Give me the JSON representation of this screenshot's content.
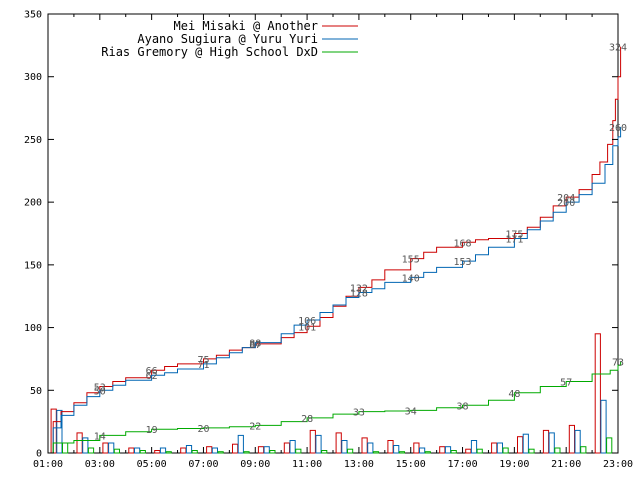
{
  "chart_data": {
    "type": "line",
    "title": "",
    "xlabel": "",
    "ylabel": "",
    "xlim": [
      1,
      23
    ],
    "ylim": [
      0,
      350
    ],
    "x_ticks": [
      "01:00",
      "03:00",
      "05:00",
      "07:00",
      "09:00",
      "11:00",
      "13:00",
      "15:00",
      "17:00",
      "19:00",
      "21:00",
      "23:00"
    ],
    "y_ticks": [
      0,
      50,
      100,
      150,
      200,
      250,
      300,
      350
    ],
    "grid": false,
    "legend_position": "top",
    "series": [
      {
        "name": "Mei Misaki @ Another",
        "color": "#cc0000",
        "cumulative": [
          [
            1,
            0
          ],
          [
            1.2,
            25
          ],
          [
            1.5,
            33
          ],
          [
            2,
            40
          ],
          [
            2.5,
            48
          ],
          [
            3,
            53
          ],
          [
            3.5,
            57
          ],
          [
            4,
            60
          ],
          [
            5,
            66
          ],
          [
            5.5,
            69
          ],
          [
            6,
            71
          ],
          [
            7,
            75
          ],
          [
            7.5,
            78
          ],
          [
            8,
            82
          ],
          [
            8.5,
            84
          ],
          [
            9,
            87
          ],
          [
            10,
            92
          ],
          [
            10.5,
            96
          ],
          [
            11,
            101
          ],
          [
            11.5,
            108
          ],
          [
            12,
            117
          ],
          [
            12.5,
            125
          ],
          [
            13,
            132
          ],
          [
            13.5,
            138
          ],
          [
            14,
            146
          ],
          [
            15,
            155
          ],
          [
            15.5,
            160
          ],
          [
            16,
            164
          ],
          [
            17,
            168
          ],
          [
            17.5,
            170
          ],
          [
            18,
            171
          ],
          [
            19,
            175
          ],
          [
            19.5,
            180
          ],
          [
            20,
            188
          ],
          [
            20.5,
            197
          ],
          [
            21,
            204
          ],
          [
            21.5,
            210
          ],
          [
            22,
            222
          ],
          [
            22.3,
            232
          ],
          [
            22.6,
            246
          ],
          [
            22.8,
            265
          ],
          [
            22.9,
            282
          ],
          [
            23,
            300
          ],
          [
            23.1,
            324
          ]
        ],
        "labels": [
          {
            "x": 3,
            "y": 53,
            "text": "53"
          },
          {
            "x": 5,
            "y": 66,
            "text": "66"
          },
          {
            "x": 7,
            "y": 75,
            "text": "75"
          },
          {
            "x": 9,
            "y": 87,
            "text": "87"
          },
          {
            "x": 11,
            "y": 101,
            "text": "101"
          },
          {
            "x": 13,
            "y": 132,
            "text": "132"
          },
          {
            "x": 15,
            "y": 155,
            "text": "155"
          },
          {
            "x": 17,
            "y": 168,
            "text": "168"
          },
          {
            "x": 19,
            "y": 175,
            "text": "175"
          },
          {
            "x": 21,
            "y": 204,
            "text": "204"
          },
          {
            "x": 23,
            "y": 324,
            "text": "324"
          }
        ],
        "hourly": [
          35,
          16,
          8,
          4,
          2,
          4,
          5,
          7,
          5,
          8,
          18,
          16,
          12,
          10,
          8,
          5,
          3,
          8,
          13,
          18,
          22,
          95
        ]
      },
      {
        "name": "Ayano Sugiura @ Yuru Yuri",
        "color": "#0066b3",
        "cumulative": [
          [
            1,
            0
          ],
          [
            1.2,
            20
          ],
          [
            1.5,
            30
          ],
          [
            2,
            38
          ],
          [
            2.5,
            45
          ],
          [
            3,
            50
          ],
          [
            3.5,
            54
          ],
          [
            4,
            58
          ],
          [
            5,
            62
          ],
          [
            5.5,
            64
          ],
          [
            6,
            67
          ],
          [
            7,
            71
          ],
          [
            7.5,
            76
          ],
          [
            8,
            80
          ],
          [
            8.5,
            84
          ],
          [
            9,
            88
          ],
          [
            10,
            95
          ],
          [
            10.5,
            102
          ],
          [
            11,
            106
          ],
          [
            11.5,
            112
          ],
          [
            12,
            118
          ],
          [
            12.5,
            124
          ],
          [
            13,
            128
          ],
          [
            13.5,
            131
          ],
          [
            14,
            136
          ],
          [
            15,
            140
          ],
          [
            15.5,
            144
          ],
          [
            16,
            148
          ],
          [
            17,
            153
          ],
          [
            17.5,
            158
          ],
          [
            18,
            164
          ],
          [
            19,
            171
          ],
          [
            19.5,
            178
          ],
          [
            20,
            185
          ],
          [
            20.5,
            192
          ],
          [
            21,
            200
          ],
          [
            21.5,
            206
          ],
          [
            22,
            215
          ],
          [
            22.5,
            230
          ],
          [
            22.8,
            245
          ],
          [
            23,
            252
          ],
          [
            23.1,
            260
          ]
        ],
        "labels": [
          {
            "x": 3,
            "y": 50,
            "text": "50"
          },
          {
            "x": 5,
            "y": 62,
            "text": "62"
          },
          {
            "x": 7,
            "y": 71,
            "text": "71"
          },
          {
            "x": 9,
            "y": 88,
            "text": "88"
          },
          {
            "x": 11,
            "y": 106,
            "text": "106"
          },
          {
            "x": 13,
            "y": 128,
            "text": "128"
          },
          {
            "x": 15,
            "y": 140,
            "text": "140"
          },
          {
            "x": 17,
            "y": 153,
            "text": "153"
          },
          {
            "x": 19,
            "y": 171,
            "text": "171"
          },
          {
            "x": 21,
            "y": 200,
            "text": "200"
          },
          {
            "x": 23,
            "y": 260,
            "text": "260"
          }
        ],
        "hourly": [
          34,
          12,
          8,
          4,
          4,
          6,
          4,
          14,
          5,
          10,
          14,
          10,
          8,
          6,
          4,
          5,
          10,
          8,
          15,
          16,
          18,
          42
        ]
      },
      {
        "name": "Rias Gremory @ High School DxD",
        "color": "#00aa00",
        "cumulative": [
          [
            1,
            0
          ],
          [
            1.2,
            8
          ],
          [
            2,
            10
          ],
          [
            3,
            14
          ],
          [
            4,
            17
          ],
          [
            5,
            19
          ],
          [
            6,
            19.5
          ],
          [
            7,
            20
          ],
          [
            8,
            21
          ],
          [
            9,
            22
          ],
          [
            10,
            25
          ],
          [
            11,
            28
          ],
          [
            12,
            31
          ],
          [
            13,
            33
          ],
          [
            14,
            33.5
          ],
          [
            15,
            34
          ],
          [
            16,
            36
          ],
          [
            17,
            38
          ],
          [
            18,
            42
          ],
          [
            19,
            48
          ],
          [
            20,
            53
          ],
          [
            21,
            57
          ],
          [
            22,
            63
          ],
          [
            22.7,
            66
          ],
          [
            23,
            70
          ],
          [
            23.1,
            73
          ]
        ],
        "labels": [
          {
            "x": 3,
            "y": 14,
            "text": "14"
          },
          {
            "x": 5,
            "y": 19,
            "text": "19"
          },
          {
            "x": 7,
            "y": 20,
            "text": "20"
          },
          {
            "x": 9,
            "y": 22,
            "text": "22"
          },
          {
            "x": 11,
            "y": 28,
            "text": "28"
          },
          {
            "x": 13,
            "y": 33,
            "text": "33"
          },
          {
            "x": 15,
            "y": 34,
            "text": "34"
          },
          {
            "x": 17,
            "y": 38,
            "text": "38"
          },
          {
            "x": 19,
            "y": 48,
            "text": "48"
          },
          {
            "x": 21,
            "y": 57,
            "text": "57"
          },
          {
            "x": 23,
            "y": 73,
            "text": "73"
          }
        ],
        "hourly": [
          8,
          4,
          3,
          2,
          1,
          2,
          1,
          1,
          2,
          3,
          2,
          3,
          1,
          1,
          1,
          2,
          3,
          4,
          3,
          4,
          5,
          12
        ]
      }
    ]
  }
}
